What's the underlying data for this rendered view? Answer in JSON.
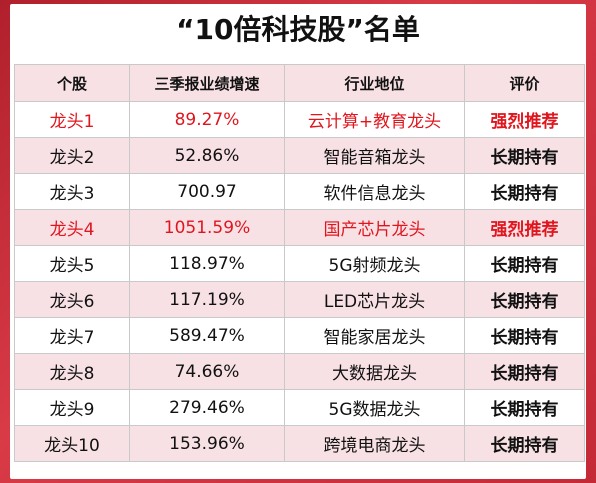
{
  "title": "“10倍科技股”名单",
  "columns": [
    "个股",
    "三季报业绩增速",
    "行业地位",
    "评价"
  ],
  "rows": [
    {
      "stock": "龙头1",
      "growth": "89.27%",
      "position": "云计算+教育龙头",
      "rating": "强烈推荐",
      "highlight": true
    },
    {
      "stock": "龙头2",
      "growth": "52.86%",
      "position": "智能音箱龙头",
      "rating": "长期持有",
      "highlight": false
    },
    {
      "stock": "龙头3",
      "growth": "700.97",
      "position": "软件信息龙头",
      "rating": "长期持有",
      "highlight": false
    },
    {
      "stock": "龙头4",
      "growth": "1051.59%",
      "position": "国产芯片龙头",
      "rating": "强烈推荐",
      "highlight": true
    },
    {
      "stock": "龙头5",
      "growth": "118.97%",
      "position": "5G射频龙头",
      "rating": "长期持有",
      "highlight": false
    },
    {
      "stock": "龙头6",
      "growth": "117.19%",
      "position": "LED芯片龙头",
      "rating": "长期持有",
      "highlight": false
    },
    {
      "stock": "龙头7",
      "growth": "589.47%",
      "position": "智能家居龙头",
      "rating": "长期持有",
      "highlight": false
    },
    {
      "stock": "龙头8",
      "growth": "74.66%",
      "position": "大数据龙头",
      "rating": "长期持有",
      "highlight": false
    },
    {
      "stock": "龙头9",
      "growth": "279.46%",
      "position": "5G数据龙头",
      "rating": "长期持有",
      "highlight": false
    },
    {
      "stock": "龙头10",
      "growth": "153.96%",
      "position": "跨境电商龙头",
      "rating": "长期持有",
      "highlight": false
    }
  ],
  "colors": {
    "highlight": "#e0161e",
    "header_bg": "#f8e1e5",
    "frame": "#c42a36"
  }
}
